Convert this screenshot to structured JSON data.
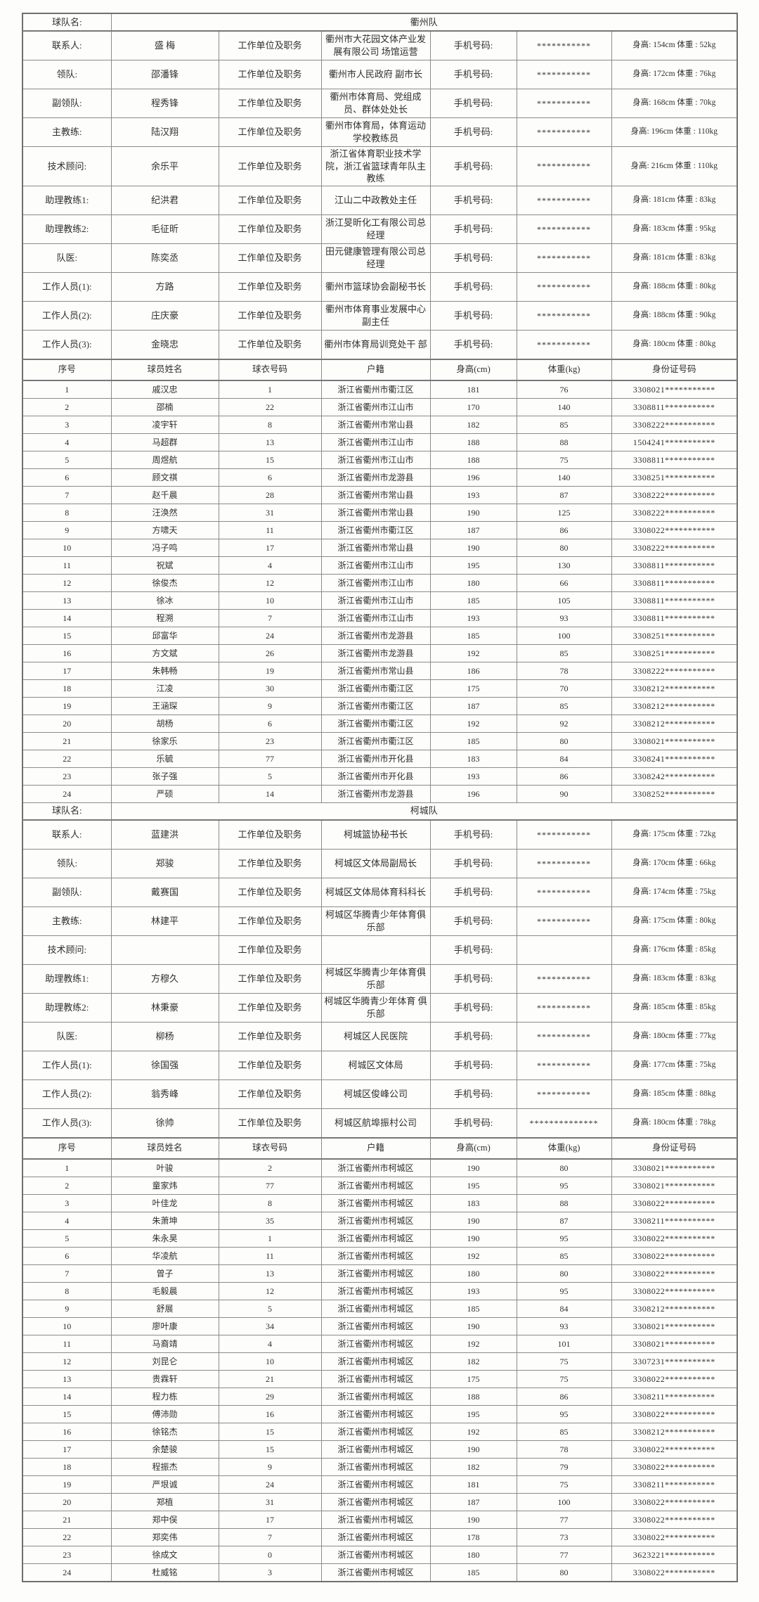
{
  "labels": {
    "team_name_label": "球队名:",
    "unit_label": "工作单位及职务",
    "phone_label": "手机号码:",
    "player_header": [
      "序号",
      "球员姓名",
      "球衣号码",
      "户籍",
      "身高(cm)",
      "体重(kg)",
      "身份证号码"
    ]
  },
  "teams": [
    {
      "name": "衢州队",
      "staff": [
        {
          "role": "联系人:",
          "person": "盛 梅",
          "unit": "衢州市大花园文体产业发展有限公司 场馆运营",
          "phone_mask": "***********",
          "hw": "身高: 154cm 体重 : 52kg"
        },
        {
          "role": "领队:",
          "person": "邵潘锋",
          "unit": "衢州市人民政府 副市长",
          "phone_mask": "***********",
          "hw": "身高: 172cm 体重 : 76kg"
        },
        {
          "role": "副领队:",
          "person": "程秀锋",
          "unit": "衢州市体育局、党组成员、群体处处长",
          "phone_mask": "***********",
          "hw": "身高: 168cm 体重 : 70kg"
        },
        {
          "role": "主教练:",
          "person": "陆汉翔",
          "unit": "衢州市体育局，体育运动学校教练员",
          "phone_mask": "***********",
          "hw": "身高: 196cm 体重 : 110kg"
        },
        {
          "role": "技术顾问:",
          "person": "余乐平",
          "unit": "浙江省体育职业技术学院，浙江省篮球青年队主教练",
          "phone_mask": "***********",
          "hw": "身高: 216cm 体重 : 110kg"
        },
        {
          "role": "助理教练1:",
          "person": "纪洪君",
          "unit": "江山二中政教处主任",
          "phone_mask": "***********",
          "hw": "身高: 181cm 体重 : 83kg"
        },
        {
          "role": "助理教练2:",
          "person": "毛征昕",
          "unit": "浙江旻昕化工有限公司总经理",
          "phone_mask": "***********",
          "hw": "身高: 183cm 体重 : 95kg"
        },
        {
          "role": "队医:",
          "person": "陈奕丞",
          "unit": "田元健康管理有限公司总经理",
          "phone_mask": "***********",
          "hw": "身高: 181cm 体重 : 83kg"
        },
        {
          "role": "工作人员(1):",
          "person": "方路",
          "unit": "衢州市篮球协会副秘书长",
          "phone_mask": "***********",
          "hw": "身高: 188cm 体重 : 80kg"
        },
        {
          "role": "工作人员(2):",
          "person": "庄庆豪",
          "unit": "衢州市体育事业发展中心副主任",
          "phone_mask": "***********",
          "hw": "身高: 188cm 体重 : 90kg"
        },
        {
          "role": "工作人员(3):",
          "person": "金晓忠",
          "unit": "衢州市体育局训竞处干 部",
          "phone_mask": "***********",
          "hw": "身高: 180cm 体重 : 80kg"
        }
      ],
      "players": [
        [
          "1",
          "戚汉忠",
          "1",
          "浙江省衢州市衢江区",
          "181",
          "76",
          "3308021***********"
        ],
        [
          "2",
          "邵楠",
          "22",
          "浙江省衢州市江山市",
          "170",
          "140",
          "3308811***********"
        ],
        [
          "3",
          "凌宇轩",
          "8",
          "浙江省衢州市常山县",
          "182",
          "85",
          "3308222***********"
        ],
        [
          "4",
          "马超群",
          "13",
          "浙江省衢州市江山市",
          "188",
          "88",
          "1504241***********"
        ],
        [
          "5",
          "周煜航",
          "15",
          "浙江省衢州市江山市",
          "188",
          "75",
          "3308811***********"
        ],
        [
          "6",
          "顾文祺",
          "6",
          "浙江省衢州市龙游县",
          "196",
          "140",
          "3308251***********"
        ],
        [
          "7",
          "赵千晨",
          "28",
          "浙江省衢州市常山县",
          "193",
          "87",
          "3308222***********"
        ],
        [
          "8",
          "汪涣然",
          "31",
          "浙江省衢州市常山县",
          "190",
          "125",
          "3308222***********"
        ],
        [
          "9",
          "方啸天",
          "11",
          "浙江省衢州市衢江区",
          "187",
          "86",
          "3308022***********"
        ],
        [
          "10",
          "冯子鸣",
          "17",
          "浙江省衢州市常山县",
          "190",
          "80",
          "3308222***********"
        ],
        [
          "11",
          "祝斌",
          "4",
          "浙江省衢州市江山市",
          "195",
          "130",
          "3308811***********"
        ],
        [
          "12",
          "徐俊杰",
          "12",
          "浙江省衢州市江山市",
          "180",
          "66",
          "3308811***********"
        ],
        [
          "13",
          "徐冰",
          "10",
          "浙江省衢州市江山市",
          "185",
          "105",
          "3308811***********"
        ],
        [
          "14",
          "程溯",
          "7",
          "浙江省衢州市江山市",
          "193",
          "93",
          "3308811***********"
        ],
        [
          "15",
          "邱富华",
          "24",
          "浙江省衢州市龙游县",
          "185",
          "100",
          "3308251***********"
        ],
        [
          "16",
          "方文斌",
          "26",
          "浙江省衢州市龙游县",
          "192",
          "85",
          "3308251***********"
        ],
        [
          "17",
          "朱韩畅",
          "19",
          "浙江省衢州市常山县",
          "186",
          "78",
          "3308222***********"
        ],
        [
          "18",
          "江凌",
          "30",
          "浙江省衢州市衢江区",
          "175",
          "70",
          "3308212***********"
        ],
        [
          "19",
          "王涵琛",
          "9",
          "浙江省衢州市衢江区",
          "187",
          "85",
          "3308212***********"
        ],
        [
          "20",
          "胡杨",
          "6",
          "浙江省衢州市衢江区",
          "192",
          "92",
          "3308212***********"
        ],
        [
          "21",
          "徐家乐",
          "23",
          "浙江省衢州市衢江区",
          "185",
          "80",
          "3308021***********"
        ],
        [
          "22",
          "乐毓",
          "77",
          "浙江省衢州市开化县",
          "183",
          "84",
          "3308241***********"
        ],
        [
          "23",
          "张子强",
          "5",
          "浙江省衢州市开化县",
          "193",
          "86",
          "3308242***********"
        ],
        [
          "24",
          "严硕",
          "14",
          "浙江省衢州市龙游县",
          "196",
          "90",
          "3308252***********"
        ]
      ]
    },
    {
      "name": "柯城队",
      "staff": [
        {
          "role": "联系人:",
          "person": "蓝建洪",
          "unit": "柯城篮协秘书长",
          "phone_mask": "***********",
          "hw": "身高: 175cm 体重 : 72kg"
        },
        {
          "role": "领队:",
          "person": "郑骏",
          "unit": "柯城区文体局副局长",
          "phone_mask": "***********",
          "hw": "身高: 170cm 体重 : 66kg"
        },
        {
          "role": "副领队:",
          "person": "戴赛国",
          "unit": "柯城区文体局体育科科长",
          "phone_mask": "***********",
          "hw": "身高: 174cm 体重 : 75kg"
        },
        {
          "role": "主教练:",
          "person": "林建平",
          "unit": "柯城区华腾青少年体育俱乐部",
          "phone_mask": "***********",
          "hw": "身高: 175cm 体重 : 80kg"
        },
        {
          "role": "技术顾问:",
          "person": "",
          "unit": "",
          "phone_mask": "",
          "hw": "身高: 176cm 体重 : 85kg"
        },
        {
          "role": "助理教练1:",
          "person": "方穆久",
          "unit": "柯城区华腾青少年体育俱乐部",
          "phone_mask": "***********",
          "hw": "身高: 183cm 体重 : 83kg"
        },
        {
          "role": "助理教练2:",
          "person": "林秉豪",
          "unit": "柯城区华腾青少年体育 俱乐部",
          "phone_mask": "***********",
          "hw": "身高: 185cm 体重 : 85kg"
        },
        {
          "role": "队医:",
          "person": "柳杨",
          "unit": "柯城区人民医院",
          "phone_mask": "***********",
          "hw": "身高: 180cm 体重 : 77kg"
        },
        {
          "role": "工作人员(1):",
          "person": "徐国强",
          "unit": "柯城区文体局",
          "phone_mask": "***********",
          "hw": "身高: 177cm 体重 : 75kg"
        },
        {
          "role": "工作人员(2):",
          "person": "翁秀峰",
          "unit": "柯城区俊峰公司",
          "phone_mask": "***********",
          "hw": "身高: 185cm 体重 : 88kg"
        },
        {
          "role": "工作人员(3):",
          "person": "徐帅",
          "unit": "柯城区航埠振村公司",
          "phone_mask": "**************",
          "hw": "身高: 180cm 体重 : 78kg"
        }
      ],
      "players": [
        [
          "1",
          "叶骏",
          "2",
          "浙江省衢州市柯城区",
          "190",
          "80",
          "3308021***********"
        ],
        [
          "2",
          "童家炜",
          "77",
          "浙江省衢州市柯城区",
          "195",
          "95",
          "3308021***********"
        ],
        [
          "3",
          "叶佳龙",
          "8",
          "浙江省衢州市柯城区",
          "183",
          "88",
          "3308022***********"
        ],
        [
          "4",
          "朱萧坤",
          "35",
          "浙江省衢州市柯城区",
          "190",
          "87",
          "3308211***********"
        ],
        [
          "5",
          "朱永昊",
          "1",
          "浙江省衢州市柯城区",
          "190",
          "95",
          "3308022***********"
        ],
        [
          "6",
          "华凌航",
          "11",
          "浙江省衢州市柯城区",
          "192",
          "85",
          "3308022***********"
        ],
        [
          "7",
          "曾子",
          "13",
          "浙江省衢州市柯城区",
          "180",
          "80",
          "3308022***********"
        ],
        [
          "8",
          "毛毅晨",
          "12",
          "浙江省衢州市柯城区",
          "193",
          "95",
          "3308022***********"
        ],
        [
          "9",
          "舒展",
          "5",
          "浙江省衢州市柯城区",
          "185",
          "84",
          "3308212***********"
        ],
        [
          "10",
          "廖叶康",
          "34",
          "浙江省衢州市柯城区",
          "190",
          "93",
          "3308021***********"
        ],
        [
          "11",
          "马裔靖",
          "4",
          "浙江省衢州市柯城区",
          "192",
          "101",
          "3308021***********"
        ],
        [
          "12",
          "刘昆仑",
          "10",
          "浙江省衢州市柯城区",
          "182",
          "75",
          "3307231***********"
        ],
        [
          "13",
          "贵霖轩",
          "21",
          "浙江省衢州市柯城区",
          "175",
          "75",
          "3308022***********"
        ],
        [
          "14",
          "程力栋",
          "29",
          "浙江省衢州市柯城区",
          "188",
          "86",
          "3308211***********"
        ],
        [
          "15",
          "傅沛勋",
          "16",
          "浙江省衢州市柯城区",
          "195",
          "95",
          "3308022***********"
        ],
        [
          "16",
          "徐铭杰",
          "15",
          "浙江省衢州市柯城区",
          "192",
          "85",
          "3308212***********"
        ],
        [
          "17",
          "余楚骏",
          "15",
          "浙江省衢州市柯城区",
          "190",
          "78",
          "3308022***********"
        ],
        [
          "18",
          "程振杰",
          "9",
          "浙江省衢州市柯城区",
          "182",
          "79",
          "3308022***********"
        ],
        [
          "19",
          "严垠诚",
          "24",
          "浙江省衢州市柯城区",
          "181",
          "75",
          "3308211***********"
        ],
        [
          "20",
          "郑植",
          "31",
          "浙江省衢州市柯城区",
          "187",
          "100",
          "3308022***********"
        ],
        [
          "21",
          "郑中俣",
          "17",
          "浙江省衢州市柯城区",
          "190",
          "77",
          "3308022***********"
        ],
        [
          "22",
          "郑奕伟",
          "7",
          "浙江省衢州市柯城区",
          "178",
          "73",
          "3308022***********"
        ],
        [
          "23",
          "徐成文",
          "0",
          "浙江省衢州市柯城区",
          "180",
          "77",
          "3623221***********"
        ],
        [
          "24",
          "杜威铭",
          "3",
          "浙江省衢州市柯城区",
          "185",
          "80",
          "3308022***********"
        ]
      ]
    }
  ]
}
